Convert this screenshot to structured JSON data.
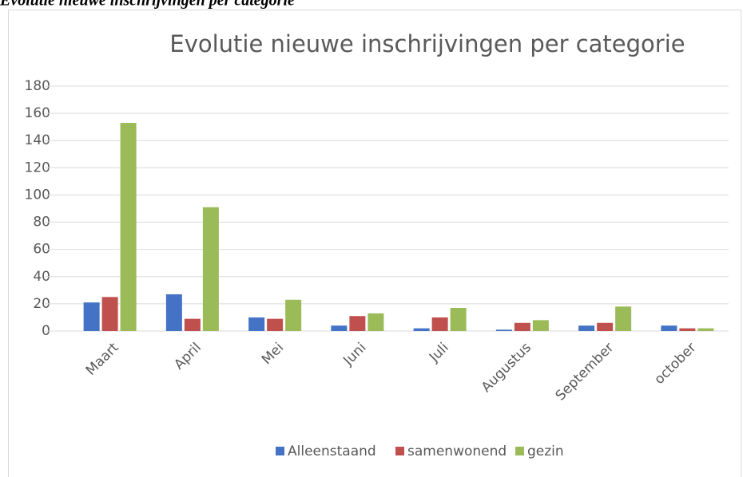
{
  "heading": "Evolutie nieuwe inschrijvingen per categorie",
  "chart_data": {
    "type": "bar",
    "title": "Evolutie nieuwe inschrijvingen per categorie",
    "categories": [
      "Maart",
      "April",
      "Mei",
      "Juni",
      "Juli",
      "Augustus",
      "September",
      "october"
    ],
    "series": [
      {
        "name": "Alleenstaand",
        "color": "#4472c4",
        "values": [
          21,
          27,
          10,
          4,
          2,
          1,
          4,
          4
        ]
      },
      {
        "name": "samenwonend",
        "color": "#c0504d",
        "values": [
          25,
          9,
          9,
          11,
          10,
          6,
          6,
          2
        ]
      },
      {
        "name": "gezin",
        "color": "#9bbb59",
        "values": [
          153,
          91,
          23,
          13,
          17,
          8,
          18,
          2
        ]
      }
    ],
    "ylim": [
      0,
      180
    ],
    "yticks": [
      0,
      20,
      40,
      60,
      80,
      100,
      120,
      140,
      160,
      180
    ],
    "grid": true,
    "legend": "bottom"
  }
}
